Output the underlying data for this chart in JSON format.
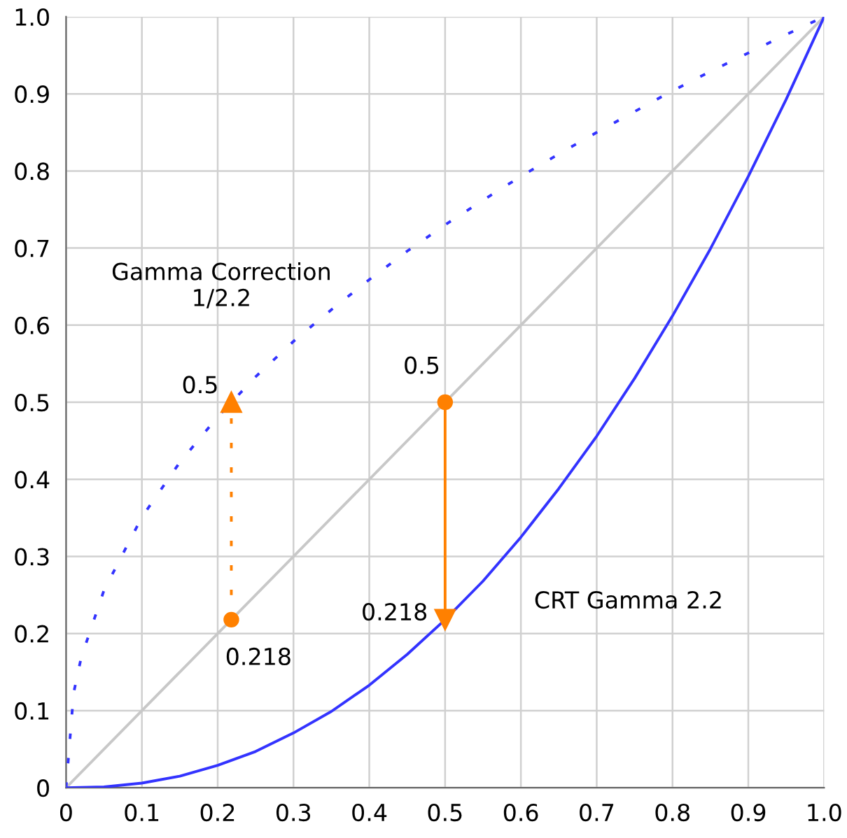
{
  "chart_data": {
    "type": "line",
    "xlim": [
      0,
      1
    ],
    "ylim": [
      0,
      1
    ],
    "xticks": [
      0,
      0.1,
      0.2,
      0.3,
      0.4,
      0.5,
      0.6,
      0.7,
      0.8,
      0.9,
      {
        "value": 1,
        "label": "1.0"
      }
    ],
    "yticks": [
      0,
      0.1,
      0.2,
      0.3,
      0.4,
      0.5,
      0.6,
      0.7,
      0.8,
      0.9,
      {
        "value": 1,
        "label": "1.0"
      }
    ],
    "grid": true,
    "series": [
      {
        "color": "#c8c8c8",
        "line_style": "solid",
        "x": [
          0,
          1
        ],
        "values": [
          0,
          1
        ]
      },
      {
        "color": "#3333ff",
        "line_style": "solid",
        "x": [
          0,
          0.05,
          0.1,
          0.15,
          0.2,
          0.25,
          0.3,
          0.35,
          0.4,
          0.45,
          0.5,
          0.55,
          0.6,
          0.65,
          0.7,
          0.75,
          0.8,
          0.85,
          0.9,
          0.95,
          1
        ],
        "values": [
          0,
          0.001,
          0.006,
          0.015,
          0.029,
          0.047,
          0.071,
          0.099,
          0.133,
          0.173,
          0.218,
          0.268,
          0.325,
          0.388,
          0.456,
          0.531,
          0.612,
          0.699,
          0.793,
          0.893,
          1
        ]
      },
      {
        "color": "#3333ff",
        "line_style": "dotted",
        "x": [
          0,
          0.01,
          0.02,
          0.05,
          0.1,
          0.15,
          0.2,
          0.25,
          0.3,
          0.35,
          0.4,
          0.45,
          0.5,
          0.55,
          0.6,
          0.65,
          0.7,
          0.75,
          0.8,
          0.85,
          0.9,
          0.95,
          1
        ],
        "values": [
          0,
          0.123,
          0.169,
          0.256,
          0.351,
          0.422,
          0.481,
          0.533,
          0.579,
          0.62,
          0.659,
          0.696,
          0.73,
          0.762,
          0.793,
          0.822,
          0.85,
          0.877,
          0.904,
          0.929,
          0.953,
          0.977,
          1
        ]
      },
      {
        "color": "#ff8000",
        "line_style": "dotted",
        "marker": "triangle",
        "x": [
          0.218,
          0.218
        ],
        "values": [
          0.218,
          0.5
        ],
        "value_labels": [
          null,
          "0.5"
        ]
      },
      {
        "color": "#ff8000",
        "line_style": "solid",
        "marker": "triangle",
        "x": [
          0.5,
          0.5
        ],
        "values": [
          0.5,
          0.218
        ],
        "value_labels": [
          null,
          "0.218"
        ]
      },
      {
        "type": "scatter",
        "color": "#ff8000",
        "marker": "circle",
        "x": [
          0.218,
          0.5
        ],
        "values": [
          0.218,
          0.5
        ],
        "value_labels": [
          "0.218",
          "0.5"
        ]
      }
    ],
    "annotations": [
      "Gamma Correction\n1/2.2",
      "CRT Gamma 2.2"
    ]
  }
}
